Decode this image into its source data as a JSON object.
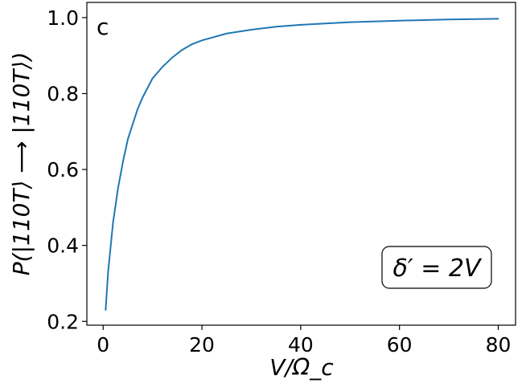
{
  "chart_data": {
    "type": "line",
    "panel_label": "c",
    "xlabel": "V/Ω_c",
    "ylabel": "P(|110T⟩ ⟶ |110T⟩)",
    "annotation": "δ′ = 2V",
    "legend_placement": "none",
    "grid": false,
    "xlim": [
      -3.3,
      83.5
    ],
    "ylim": [
      0.19,
      1.04
    ],
    "x_ticks": [
      0,
      20,
      40,
      60,
      80
    ],
    "y_ticks": [
      0.2,
      0.4,
      0.6,
      0.8,
      1.0
    ],
    "x_tick_labels": [
      "0",
      "20",
      "40",
      "60",
      "80"
    ],
    "y_tick_labels": [
      "0.2",
      "0.4",
      "0.6",
      "0.8",
      "1.0"
    ],
    "series": [
      {
        "color": "#1f77b4",
        "x": [
          0.5,
          1,
          2,
          3,
          4,
          5,
          6,
          7,
          8,
          10,
          12,
          14,
          16,
          18,
          20,
          25,
          30,
          35,
          40,
          50,
          60,
          70,
          80
        ],
        "y": [
          0.23,
          0.33,
          0.46,
          0.55,
          0.62,
          0.68,
          0.72,
          0.76,
          0.79,
          0.84,
          0.87,
          0.895,
          0.915,
          0.93,
          0.94,
          0.958,
          0.968,
          0.976,
          0.981,
          0.988,
          0.992,
          0.995,
          0.997
        ]
      }
    ]
  }
}
